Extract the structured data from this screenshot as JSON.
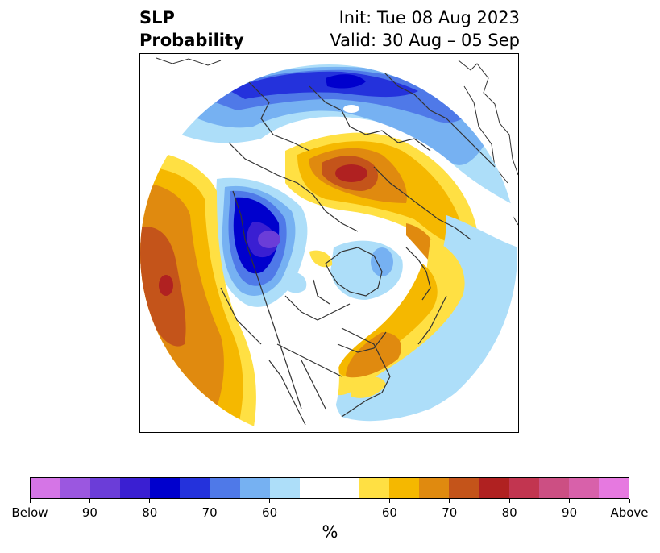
{
  "title": {
    "left_line1": "SLP",
    "left_line2": "Probability",
    "right_line1": "Init: Tue 08 Aug 2023",
    "right_line2": "Valid: 30 Aug – 05 Sep"
  },
  "colorbar": {
    "label": "%",
    "colors": [
      "#d575e6",
      "#9b57e0",
      "#6b3dd8",
      "#3a1fd2",
      "#0000cd",
      "#2432dc",
      "#4f79e8",
      "#76b1f2",
      "#addef9",
      "#ffffff",
      "#ffffff",
      "#ffe043",
      "#f5b800",
      "#e08a0f",
      "#c4541a",
      "#b02121",
      "#c23550",
      "#cc4f83",
      "#d861aa",
      "#e679e0"
    ],
    "ticks": [
      "Below",
      "90",
      "80",
      "70",
      "60",
      "60",
      "70",
      "80",
      "90",
      "Above"
    ]
  },
  "map": {
    "projection": "north-polar-stereographic",
    "colors": {
      "blue_60": "#addef9",
      "blue_70": "#76b1f2",
      "blue_75": "#4f79e8",
      "blue_80": "#2432dc",
      "blue_85": "#0000cd",
      "blue_90": "#3a1fd2",
      "purple_95": "#6b3dd8",
      "yellow_60": "#ffe043",
      "yellow_65": "#f5b800",
      "orange_70": "#e08a0f",
      "orange_75": "#c4541a",
      "red_80": "#b02121",
      "coast": "#333333"
    }
  }
}
